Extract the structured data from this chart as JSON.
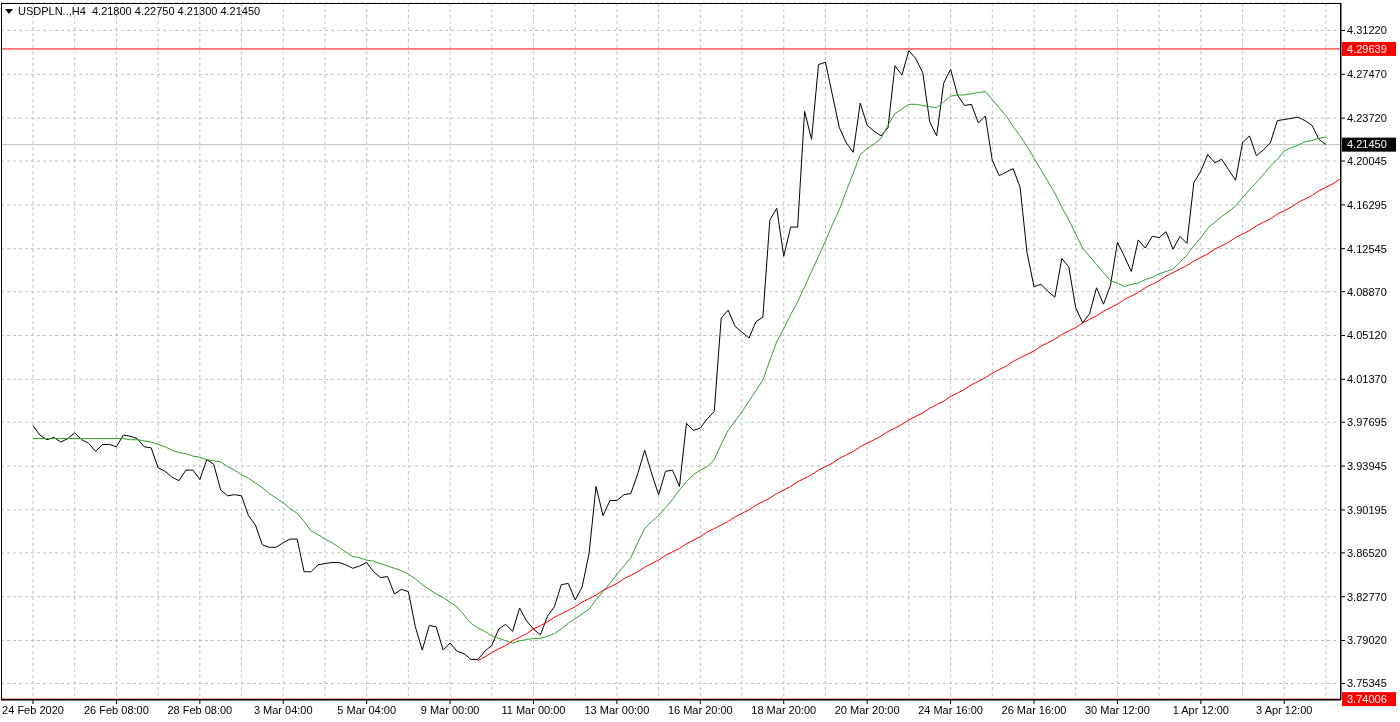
{
  "chart_data": {
    "type": "line",
    "title": "USDPLN..,H4  4.21800 4.22750 4.21300 4.21450",
    "categories": [
      "24 Feb 2020",
      null,
      null,
      null,
      null,
      null,
      null,
      null,
      null,
      null,
      null,
      null,
      "26 Feb 08:00",
      null,
      null,
      null,
      null,
      null,
      null,
      null,
      null,
      null,
      null,
      null,
      "28 Feb 08:00",
      null,
      null,
      null,
      null,
      null,
      null,
      null,
      null,
      null,
      null,
      null,
      "3 Mar 04:00",
      null,
      null,
      null,
      null,
      null,
      null,
      null,
      null,
      null,
      null,
      null,
      "5 Mar 04:00",
      null,
      null,
      null,
      null,
      null,
      null,
      null,
      null,
      null,
      null,
      null,
      "9 Mar 00:00",
      null,
      null,
      null,
      null,
      null,
      null,
      null,
      null,
      null,
      null,
      null,
      "11 Mar 00:00",
      null,
      null,
      null,
      null,
      null,
      null,
      null,
      null,
      null,
      null,
      null,
      "13 Mar 00:00",
      null,
      null,
      null,
      null,
      null,
      null,
      null,
      null,
      null,
      null,
      null,
      "16 Mar 20:00",
      null,
      null,
      null,
      null,
      null,
      null,
      null,
      null,
      null,
      null,
      null,
      "18 Mar 20:00",
      null,
      null,
      null,
      null,
      null,
      null,
      null,
      null,
      null,
      null,
      null,
      "20 Mar 20:00",
      null,
      null,
      null,
      null,
      null,
      null,
      null,
      null,
      null,
      null,
      null,
      "24 Mar 16:00",
      null,
      null,
      null,
      null,
      null,
      null,
      null,
      null,
      null,
      null,
      null,
      "26 Mar 16:00",
      null,
      null,
      null,
      null,
      null,
      null,
      null,
      null,
      null,
      null,
      null,
      "30 Mar 12:00",
      null,
      null,
      null,
      null,
      null,
      null,
      null,
      null,
      null,
      null,
      null,
      "1 Apr 12:00",
      null,
      null,
      null,
      null,
      null,
      null,
      null,
      null,
      null,
      null,
      null,
      "3 Apr 12:00",
      null,
      null,
      null,
      null,
      null,
      null,
      null,
      null
    ],
    "ylim": [
      3.7393,
      4.3357
    ],
    "yticks": [
      3.75345,
      {
        "value": 3.7902,
        "label": "3.79020"
      },
      {
        "value": 3.8277,
        "label": "3.82770"
      },
      {
        "value": 3.8652,
        "label": "3.86520"
      },
      3.90195,
      3.93945,
      3.97695,
      {
        "value": 4.0137,
        "label": "4.01370"
      },
      {
        "value": 4.0512,
        "label": "4.05120"
      },
      {
        "value": 4.0887,
        "label": "4.08870"
      },
      4.12545,
      4.16295,
      4.20045,
      {
        "value": 4.2372,
        "label": "4.23720"
      },
      {
        "value": 4.2747,
        "label": "4.27470"
      },
      {
        "value": 4.3122,
        "label": "4.31220"
      }
    ],
    "grid": true,
    "series": [
      {
        "color": "#000000",
        "values": [
          3.974,
          3.966,
          3.962,
          3.964,
          3.96,
          3.963,
          3.968,
          3.962,
          3.959,
          3.952,
          3.958,
          3.958,
          3.956,
          3.966,
          3.965,
          3.963,
          3.956,
          3.955,
          3.938,
          3.935,
          3.93,
          3.927,
          3.936,
          3.936,
          3.928,
          3.945,
          3.941,
          3.919,
          3.914,
          3.915,
          3.914,
          3.897,
          3.889,
          3.872,
          3.87,
          3.87,
          3.874,
          3.877,
          3.877,
          3.849,
          3.849,
          3.855,
          3.856,
          3.857,
          3.857,
          3.855,
          3.852,
          3.854,
          3.857,
          3.849,
          3.844,
          3.845,
          3.83,
          3.834,
          3.832,
          3.802,
          3.782,
          3.803,
          3.802,
          3.782,
          3.788,
          3.781,
          3.779,
          3.774,
          3.774,
          3.781,
          3.786,
          3.8,
          3.804,
          3.798,
          3.818,
          3.807,
          3.8,
          3.795,
          3.811,
          3.819,
          3.838,
          3.839,
          3.825,
          3.836,
          3.865,
          3.922,
          3.897,
          3.91,
          3.91,
          3.915,
          3.916,
          3.933,
          3.953,
          3.933,
          3.915,
          3.935,
          3.936,
          3.922,
          3.976,
          3.97,
          3.972,
          3.98,
          3.986,
          4.066,
          4.073,
          4.059,
          4.054,
          4.049,
          4.063,
          4.067,
          4.15,
          4.16,
          4.119,
          4.144,
          4.144,
          4.243,
          4.219,
          4.283,
          4.285,
          4.257,
          4.229,
          4.216,
          4.208,
          4.25,
          4.231,
          4.226,
          4.222,
          4.229,
          4.282,
          4.274,
          4.295,
          4.288,
          4.276,
          4.234,
          4.222,
          4.267,
          4.279,
          4.257,
          4.248,
          4.249,
          4.233,
          4.239,
          4.201,
          4.188,
          4.191,
          4.194,
          4.178,
          4.122,
          4.093,
          4.095,
          4.089,
          4.084,
          4.117,
          4.11,
          4.075,
          4.062,
          4.07,
          4.092,
          4.078,
          4.094,
          4.131,
          4.119,
          4.106,
          4.133,
          4.126,
          4.136,
          4.135,
          4.14,
          4.125,
          4.136,
          4.13,
          4.182,
          4.192,
          4.206,
          4.199,
          4.202,
          4.193,
          4.184,
          4.216,
          4.222,
          4.205,
          4.21,
          4.216,
          4.235,
          4.236,
          4.237,
          4.238,
          4.235,
          4.231,
          4.219,
          4.2145,
          null,
          null
        ]
      },
      {
        "color": "#32a032",
        "values": [
          3.963,
          3.963,
          3.963,
          3.963,
          3.963,
          3.963,
          3.963,
          3.963,
          3.963,
          3.963,
          3.963,
          3.963,
          3.963,
          3.963,
          3.962,
          3.962,
          3.961,
          3.96,
          3.958,
          3.956,
          3.953,
          3.951,
          3.95,
          3.948,
          3.947,
          3.945,
          3.944,
          3.943,
          3.939,
          3.936,
          3.932,
          3.929,
          3.925,
          3.921,
          3.916,
          3.912,
          3.908,
          3.903,
          3.899,
          3.892,
          3.884,
          3.881,
          3.877,
          3.874,
          3.87,
          3.866,
          3.862,
          3.861,
          3.859,
          3.858,
          3.856,
          3.854,
          3.852,
          3.85,
          3.847,
          3.843,
          3.838,
          3.834,
          3.83,
          3.827,
          3.823,
          3.819,
          3.812,
          3.805,
          3.801,
          3.798,
          3.794,
          3.792,
          3.79,
          3.788,
          3.79,
          3.791,
          3.792,
          3.792,
          3.794,
          3.796,
          3.8,
          3.805,
          3.809,
          3.813,
          3.817,
          3.825,
          3.832,
          3.839,
          3.847,
          3.854,
          3.861,
          3.874,
          3.886,
          3.892,
          3.897,
          3.904,
          3.911,
          3.919,
          3.926,
          3.932,
          3.936,
          3.939,
          3.945,
          3.958,
          3.97,
          3.978,
          3.986,
          3.995,
          4.004,
          4.013,
          4.03,
          4.046,
          4.057,
          4.069,
          4.08,
          4.093,
          4.106,
          4.119,
          4.132,
          4.146,
          4.159,
          4.175,
          4.19,
          4.206,
          4.211,
          4.215,
          4.22,
          4.231,
          4.241,
          4.245,
          4.249,
          4.249,
          4.248,
          4.247,
          4.246,
          4.251,
          4.256,
          4.257,
          4.257,
          4.258,
          4.259,
          4.26,
          4.253,
          4.246,
          4.239,
          4.23,
          4.222,
          4.213,
          4.203,
          4.193,
          4.183,
          4.173,
          4.161,
          4.15,
          4.138,
          4.126,
          4.119,
          4.112,
          4.105,
          4.098,
          4.096,
          4.093,
          4.095,
          4.096,
          4.099,
          4.101,
          4.104,
          4.106,
          4.108,
          4.114,
          4.12,
          4.128,
          4.135,
          4.143,
          4.148,
          4.153,
          4.157,
          4.162,
          4.169,
          4.176,
          4.182,
          4.189,
          4.196,
          4.202,
          4.209,
          4.212,
          4.214,
          4.217,
          4.218,
          4.22,
          4.221,
          null,
          null
        ]
      },
      {
        "type": "line",
        "color": "#ff0000",
        "values": [
          null,
          null,
          null,
          null,
          null,
          null,
          null,
          null,
          null,
          null,
          null,
          null,
          null,
          null,
          null,
          null,
          null,
          null,
          null,
          null,
          null,
          null,
          null,
          null,
          null,
          null,
          null,
          null,
          null,
          null,
          null,
          null,
          null,
          null,
          null,
          null,
          null,
          null,
          null,
          null,
          null,
          null,
          null,
          null,
          null,
          null,
          null,
          null,
          null,
          null,
          null,
          null,
          null,
          null,
          null,
          null,
          null,
          null,
          null,
          null,
          null,
          null,
          null,
          null,
          3.773,
          3.776,
          3.78,
          3.783,
          3.786,
          3.79,
          3.793,
          3.796,
          3.8,
          3.803,
          3.806,
          3.81,
          3.813,
          3.816,
          3.819,
          3.823,
          3.826,
          3.829,
          3.833,
          3.836,
          3.839,
          3.843,
          3.846,
          3.849,
          3.853,
          3.856,
          3.859,
          3.863,
          3.866,
          3.869,
          3.873,
          3.876,
          3.879,
          3.883,
          3.886,
          3.889,
          3.892,
          3.896,
          3.899,
          3.902,
          3.906,
          3.909,
          3.912,
          3.916,
          3.919,
          3.922,
          3.926,
          3.929,
          3.932,
          3.936,
          3.939,
          3.942,
          3.946,
          3.949,
          3.952,
          3.956,
          3.959,
          3.962,
          3.965,
          3.969,
          3.972,
          3.975,
          3.979,
          3.982,
          3.985,
          3.989,
          3.992,
          3.995,
          3.999,
          4.002,
          4.005,
          4.009,
          4.012,
          4.015,
          4.019,
          4.022,
          4.025,
          4.029,
          4.032,
          4.035,
          4.038,
          4.042,
          4.045,
          4.048,
          4.052,
          4.055,
          4.058,
          4.062,
          4.065,
          4.068,
          4.072,
          4.075,
          4.078,
          4.082,
          4.085,
          4.088,
          4.092,
          4.095,
          4.098,
          4.102,
          4.105,
          4.108,
          4.111,
          4.115,
          4.118,
          4.121,
          4.125,
          4.128,
          4.131,
          4.135,
          4.138,
          4.141,
          4.145,
          4.148,
          4.151,
          4.155,
          4.158,
          4.161,
          4.165,
          4.168,
          4.171,
          4.175,
          4.178,
          4.181,
          4.185
        ]
      }
    ],
    "ref_lines": [
      {
        "axis": "y",
        "value": 4.29639,
        "label": "4.29639",
        "color": "#ff0000"
      },
      {
        "axis": "y",
        "value": 4.2145,
        "label": "4.21450",
        "color": "#c0c0c0"
      },
      {
        "axis": "y",
        "value": 3.74006,
        "label": "3.74006",
        "color": "#ff0000"
      }
    ]
  }
}
